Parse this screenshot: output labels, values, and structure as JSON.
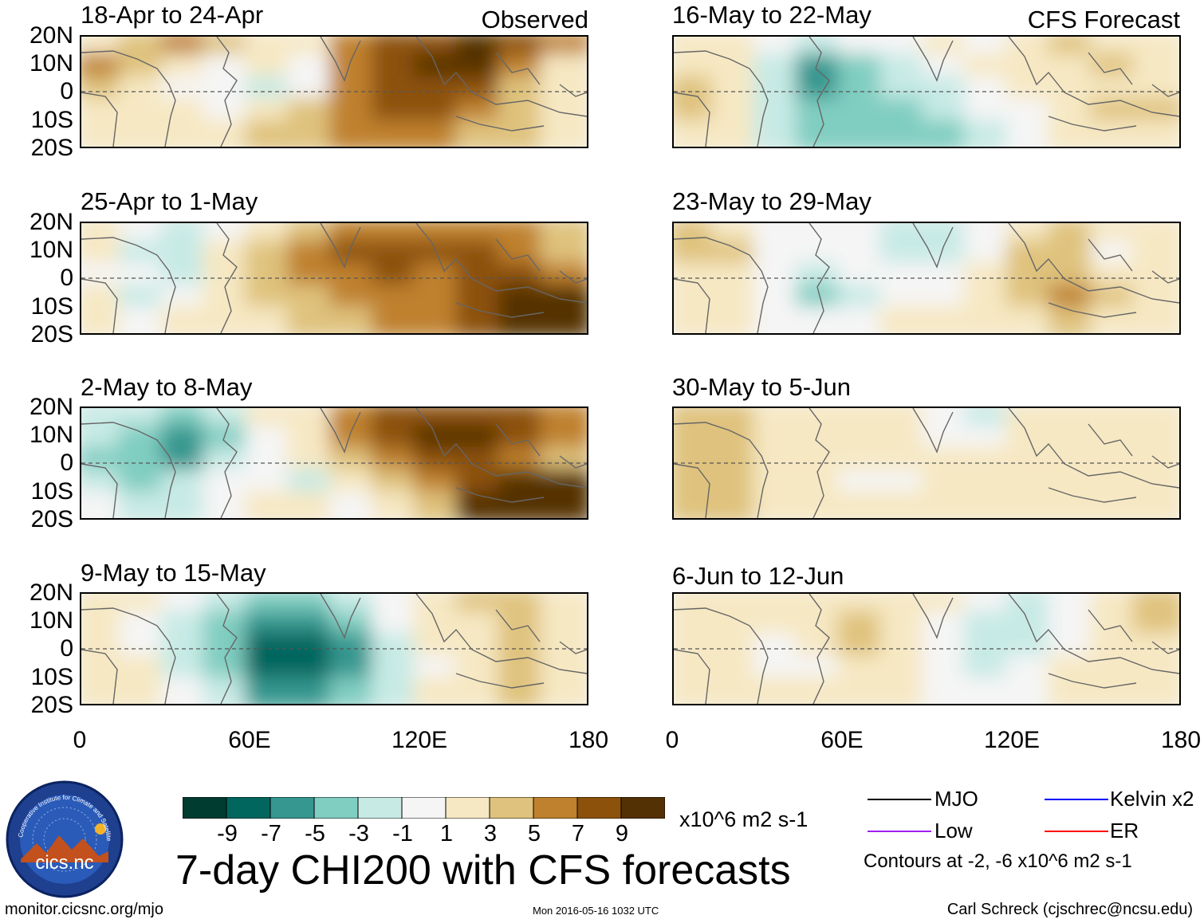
{
  "title": "7-day CHI200 with CFS forecasts",
  "observed_label": "Observed",
  "forecast_label": "CFS Forecast",
  "lat_labels": [
    "20N",
    "10N",
    "0",
    "10S",
    "20S"
  ],
  "lon_labels": [
    "0",
    "60E",
    "120E",
    "180"
  ],
  "panels": [
    {
      "title": "18-Apr to 24-Apr",
      "kind": "observed",
      "field": [
        [
          1,
          3,
          5,
          3,
          1,
          1,
          5,
          7,
          7,
          9,
          7,
          5
        ],
        [
          5,
          3,
          1,
          -1,
          1,
          -1,
          5,
          7,
          9,
          9,
          5,
          1
        ],
        [
          3,
          1,
          -1,
          -1,
          -3,
          -1,
          5,
          7,
          7,
          7,
          3,
          1
        ],
        [
          1,
          1,
          1,
          -1,
          1,
          3,
          5,
          7,
          7,
          5,
          3,
          1
        ],
        [
          1,
          1,
          1,
          1,
          3,
          3,
          5,
          5,
          5,
          3,
          3,
          1
        ]
      ]
    },
    {
      "title": "25-Apr to 1-May",
      "kind": "observed",
      "field": [
        [
          1,
          -1,
          -3,
          -1,
          1,
          3,
          5,
          5,
          5,
          5,
          5,
          3
        ],
        [
          1,
          -3,
          -3,
          1,
          3,
          5,
          7,
          7,
          7,
          7,
          5,
          3
        ],
        [
          -1,
          -1,
          -3,
          1,
          3,
          5,
          5,
          7,
          5,
          7,
          7,
          5
        ],
        [
          1,
          -3,
          -1,
          1,
          3,
          3,
          5,
          5,
          5,
          7,
          9,
          9
        ],
        [
          1,
          -1,
          1,
          1,
          1,
          3,
          3,
          5,
          5,
          7,
          9,
          9
        ]
      ]
    },
    {
      "title": "2-May to 8-May",
      "kind": "observed",
      "field": [
        [
          -3,
          -3,
          -5,
          -3,
          1,
          1,
          5,
          7,
          7,
          7,
          7,
          5
        ],
        [
          -3,
          -5,
          -7,
          -5,
          -1,
          1,
          5,
          7,
          9,
          9,
          7,
          5
        ],
        [
          -5,
          -5,
          -7,
          -3,
          -1,
          1,
          3,
          5,
          7,
          7,
          5,
          3
        ],
        [
          -3,
          -5,
          -3,
          -1,
          -1,
          -3,
          1,
          3,
          5,
          7,
          9,
          9
        ],
        [
          -1,
          -3,
          -3,
          -1,
          1,
          1,
          -1,
          1,
          3,
          9,
          9,
          9
        ]
      ]
    },
    {
      "title": "9-May to 15-May",
      "kind": "observed",
      "field": [
        [
          1,
          1,
          -1,
          -3,
          -5,
          -5,
          -3,
          -1,
          1,
          3,
          3,
          1
        ],
        [
          1,
          -1,
          -3,
          -5,
          -7,
          -7,
          -5,
          -1,
          1,
          1,
          3,
          1
        ],
        [
          1,
          -1,
          -3,
          -5,
          -9,
          -9,
          -7,
          -3,
          1,
          1,
          3,
          1
        ],
        [
          1,
          1,
          -3,
          -5,
          -9,
          -9,
          -7,
          -3,
          -1,
          1,
          3,
          1
        ],
        [
          1,
          1,
          -1,
          -3,
          -7,
          -7,
          -5,
          -3,
          1,
          1,
          3,
          1
        ]
      ]
    },
    {
      "title": "16-May to 22-May",
      "kind": "forecast",
      "field": [
        [
          1,
          1,
          -1,
          -3,
          -1,
          -1,
          1,
          -1,
          1,
          3,
          1,
          1
        ],
        [
          1,
          1,
          -3,
          -7,
          -5,
          -3,
          -1,
          1,
          1,
          1,
          3,
          1
        ],
        [
          3,
          1,
          -3,
          -7,
          -5,
          -3,
          -3,
          -1,
          1,
          1,
          1,
          1
        ],
        [
          3,
          1,
          -3,
          -5,
          -5,
          -5,
          -3,
          -1,
          -1,
          1,
          3,
          3
        ],
        [
          1,
          1,
          -3,
          -5,
          -5,
          -5,
          -5,
          -3,
          -1,
          1,
          1,
          1
        ]
      ]
    },
    {
      "title": "23-May to 29-May",
      "kind": "forecast",
      "field": [
        [
          3,
          1,
          -1,
          -1,
          -1,
          -3,
          -3,
          -1,
          1,
          3,
          1,
          1
        ],
        [
          3,
          3,
          -1,
          -1,
          -1,
          -3,
          -3,
          -1,
          3,
          3,
          -1,
          1
        ],
        [
          1,
          1,
          -1,
          -3,
          -1,
          -1,
          -1,
          1,
          3,
          3,
          1,
          1
        ],
        [
          1,
          1,
          -1,
          -5,
          -3,
          -1,
          -1,
          1,
          3,
          5,
          3,
          1
        ],
        [
          1,
          1,
          -1,
          -1,
          -1,
          1,
          1,
          1,
          1,
          3,
          1,
          1
        ]
      ]
    },
    {
      "title": "30-May to 5-Jun",
      "kind": "forecast",
      "field": [
        [
          3,
          3,
          1,
          1,
          1,
          1,
          -1,
          -3,
          1,
          1,
          1,
          1
        ],
        [
          3,
          3,
          1,
          1,
          1,
          1,
          -1,
          -1,
          1,
          1,
          1,
          1
        ],
        [
          3,
          3,
          1,
          1,
          1,
          1,
          1,
          1,
          1,
          1,
          1,
          1
        ],
        [
          3,
          3,
          1,
          1,
          -1,
          -1,
          1,
          1,
          1,
          1,
          1,
          1
        ],
        [
          3,
          3,
          1,
          1,
          1,
          1,
          1,
          1,
          1,
          1,
          1,
          1
        ]
      ]
    },
    {
      "title": "6-Jun to 12-Jun",
      "kind": "forecast",
      "field": [
        [
          1,
          1,
          1,
          1,
          1,
          1,
          1,
          -1,
          -3,
          -1,
          1,
          3
        ],
        [
          1,
          1,
          1,
          1,
          3,
          1,
          -1,
          -3,
          -3,
          -1,
          1,
          3
        ],
        [
          1,
          1,
          -1,
          1,
          3,
          1,
          -1,
          -3,
          -3,
          -1,
          1,
          1
        ],
        [
          1,
          1,
          -1,
          -1,
          1,
          1,
          -1,
          -3,
          -1,
          1,
          1,
          1
        ],
        [
          1,
          1,
          1,
          1,
          1,
          1,
          -1,
          -1,
          -1,
          1,
          1,
          1
        ]
      ]
    }
  ],
  "colorbar": {
    "ticks": [
      "-9",
      "-7",
      "-5",
      "-3",
      "-1",
      "1",
      "3",
      "5",
      "7",
      "9"
    ],
    "units": "x10^6 m2 s-1",
    "colors": [
      "#003c30",
      "#01665e",
      "#35978f",
      "#80cdc1",
      "#c7eae5",
      "#f5f5f5",
      "#f6e8c3",
      "#dfc27d",
      "#bf812d",
      "#8c510a",
      "#543005"
    ]
  },
  "legend": {
    "items": [
      {
        "label": "MJO",
        "color": "#000000"
      },
      {
        "label": "Kelvin x2",
        "color": "#0000ff"
      },
      {
        "label": "Low",
        "color": "#a020f0"
      },
      {
        "label": "ER",
        "color": "#ff0000"
      }
    ],
    "note": "Contours at -2, -6 x10^6 m2 s-1"
  },
  "logo": {
    "text": "cics.nc",
    "ring_text": "Cooperative Institute for Climate and Satellites"
  },
  "footer": {
    "url": "monitor.cicsnc.org/mjo",
    "timestamp": "Mon 2016-05-16 1032 UTC",
    "credit": "Carl Schreck (cjschrec@ncsu.edu)"
  }
}
